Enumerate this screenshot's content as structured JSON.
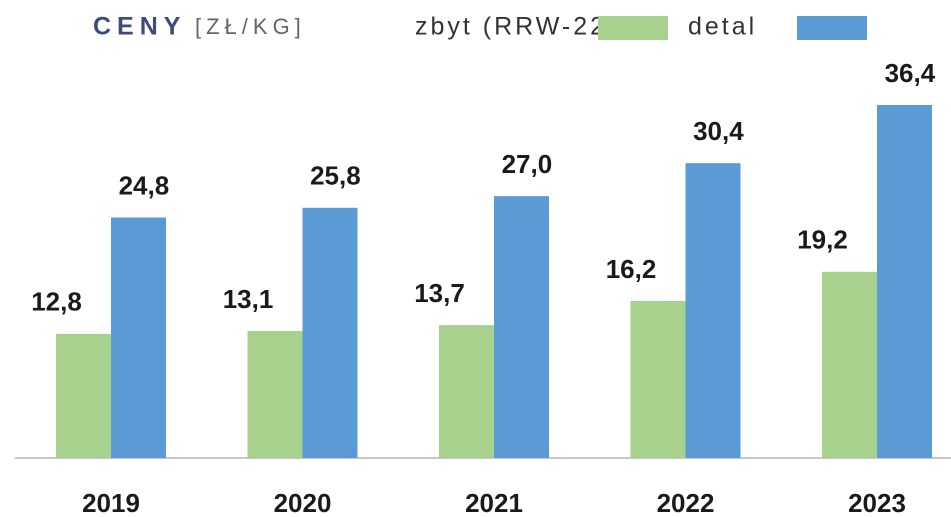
{
  "chart_data": {
    "type": "bar",
    "title": "CENY",
    "subtitle": "[ZŁ/KG]",
    "categories": [
      "2019",
      "2020",
      "2021",
      "2022",
      "2023"
    ],
    "series": [
      {
        "name": "zbyt (RRW-22)",
        "color": "#a9d18e",
        "values": [
          12.8,
          13.1,
          13.7,
          16.2,
          19.2
        ],
        "value_labels": [
          "12,8",
          "13,1",
          "13,7",
          "16,2",
          "19,2"
        ]
      },
      {
        "name": "detal",
        "color": "#5b9bd5",
        "values": [
          24.8,
          25.8,
          27.0,
          30.4,
          36.4
        ],
        "value_labels": [
          "24,8",
          "25,8",
          "27,0",
          "30,4",
          "36,4"
        ]
      }
    ]
  }
}
